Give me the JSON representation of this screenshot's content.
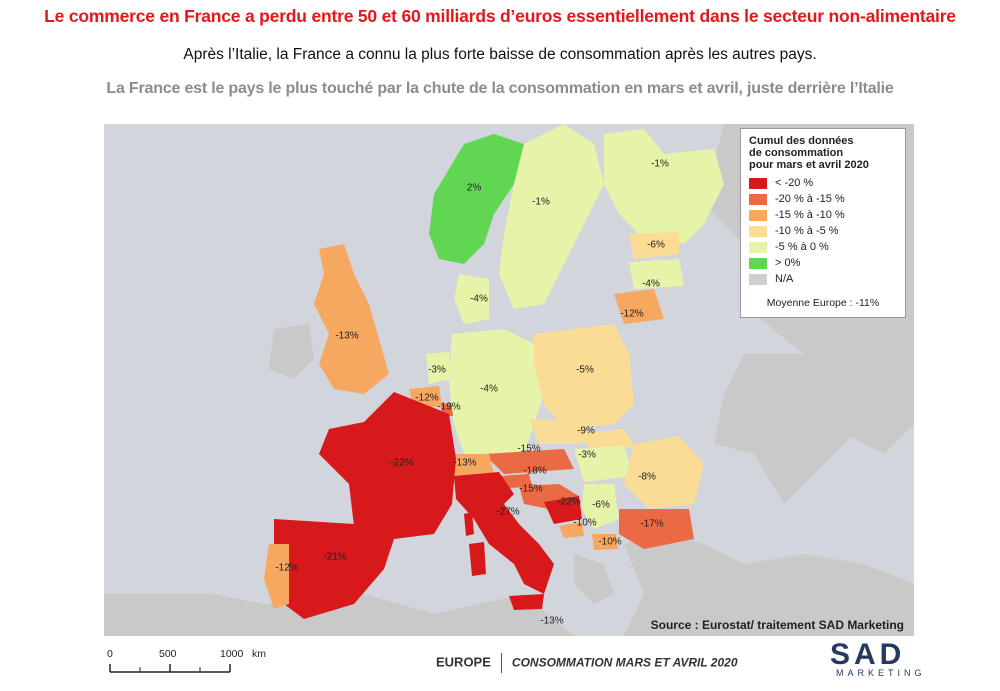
{
  "headline": "Le commerce en France a perdu entre 50 et 60 milliards d’euros essentiellement dans le secteur  non-alimentaire",
  "subtitle1": "Après l’Italie, la France a connu la plus forte baisse de consommation après les autres pays.",
  "subtitle2": "La France est le pays le plus touché par la chute de la consommation en mars et avril, juste derrière l’Italie",
  "legend": {
    "title_line1": "Cumul des données",
    "title_line2": "de consommation",
    "title_line3": "pour mars et avril 2020",
    "items": [
      {
        "label": "< -20 %",
        "color": "#d7191c"
      },
      {
        "label": "-20 % à -15 %",
        "color": "#ec6a43"
      },
      {
        "label": "-15 % à -10 %",
        "color": "#f6a760"
      },
      {
        "label": "-10 % à -5 %",
        "color": "#fbdc94"
      },
      {
        "label": "-5 % à 0 %",
        "color": "#e6f4a9"
      },
      {
        "label": "> 0%",
        "color": "#61d653"
      },
      {
        "label": "N/A",
        "color": "#cfcfcf"
      }
    ],
    "average": "Moyenne Europe : -11%"
  },
  "values": {
    "norway": "2%",
    "sweden": "-1%",
    "finland": "-1%",
    "estonia": "-6%",
    "latvia": "-4%",
    "lithuania": "-12%",
    "denmark": "-4%",
    "uk": "-13%",
    "netherlands": "-3%",
    "belgium": "-12%",
    "luxembourg": "-19%",
    "germany": "-4%",
    "poland": "-5%",
    "czechia": "-9%",
    "slovakia": "-3%",
    "austria": "-15%",
    "switzerland": "-13%",
    "slovenia": "-18%",
    "croatia": "-15%",
    "bosnia": "-22%",
    "serbia": "-6%",
    "hungary": "-3%",
    "romania": "-8%",
    "bulgaria": "-17%",
    "montenegro": "-10%",
    "macedonia": "-10%",
    "france": "-22%",
    "italy": "-27%",
    "spain": "-21%",
    "portugal": "-12%",
    "malta": "-13%"
  },
  "source": "Source : Eurostat/ traitement SAD Marketing",
  "scale": {
    "zero": "0",
    "mid": "500",
    "max": "1000",
    "unit": "km"
  },
  "footer": {
    "region": "EUROPE",
    "caption": "CONSOMMATION MARS ET AVRIL 2020"
  },
  "logo": {
    "letters": "SAD",
    "sub": "MARKETING"
  }
}
